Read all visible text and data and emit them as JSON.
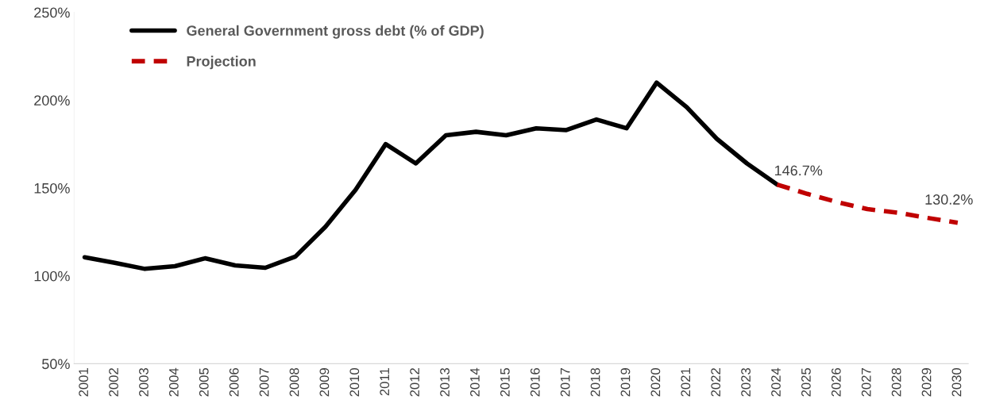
{
  "chart_data": {
    "type": "line",
    "categories": [
      "2001",
      "2002",
      "2003",
      "2004",
      "2005",
      "2006",
      "2007",
      "2008",
      "2009",
      "2010",
      "2011",
      "2012",
      "2013",
      "2014",
      "2015",
      "2016",
      "2017",
      "2018",
      "2019",
      "2020",
      "2021",
      "2022",
      "2023",
      "2024",
      "2025",
      "2026",
      "2027",
      "2028",
      "2029",
      "2030"
    ],
    "series": [
      {
        "name": "General Government gross debt (% of GDP)",
        "color": "#000000",
        "line_style": "solid",
        "values": [
          110.6,
          107.4,
          104,
          105.5,
          110,
          106,
          104.6,
          111,
          128,
          149,
          175,
          164,
          180,
          182,
          180,
          184,
          183,
          189,
          184,
          210,
          196,
          178,
          164,
          152,
          null,
          null,
          null,
          null,
          null,
          null
        ]
      },
      {
        "name": "Projection",
        "color": "#c00000",
        "line_style": "dashed",
        "values": [
          null,
          null,
          null,
          null,
          null,
          null,
          null,
          null,
          null,
          null,
          null,
          null,
          null,
          null,
          null,
          null,
          null,
          null,
          null,
          null,
          null,
          null,
          null,
          152,
          146.7,
          142,
          138,
          136,
          133,
          130.2
        ],
        "value_labels": [
          null,
          null,
          null,
          null,
          null,
          null,
          null,
          null,
          null,
          null,
          null,
          null,
          null,
          null,
          null,
          null,
          null,
          null,
          null,
          null,
          null,
          null,
          null,
          null,
          "146.7%",
          null,
          null,
          null,
          null,
          "130.2%"
        ]
      }
    ],
    "ylim": [
      50,
      250
    ],
    "yticks": [
      {
        "value": 50,
        "label": "50%"
      },
      {
        "value": 100,
        "label": "100%"
      },
      {
        "value": 150,
        "label": "150%"
      },
      {
        "value": 200,
        "label": "200%"
      },
      {
        "value": 250,
        "label": "250%"
      }
    ],
    "grid": false,
    "legend": "top left",
    "marker": "none"
  }
}
